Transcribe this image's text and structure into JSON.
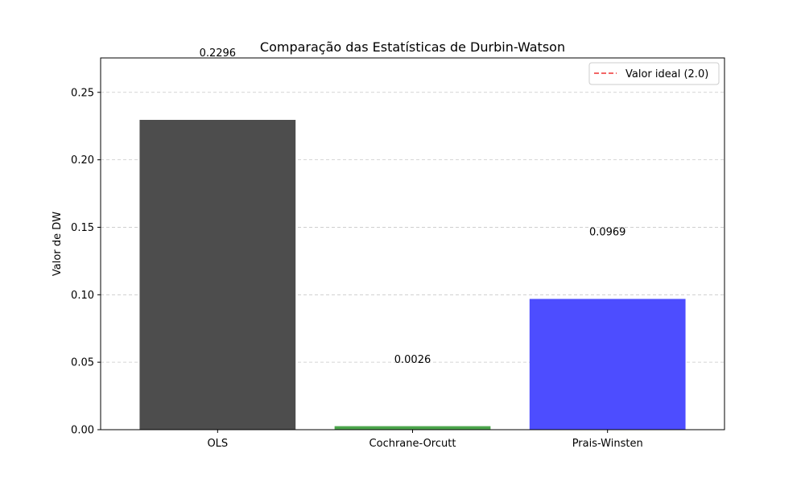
{
  "chart_data": {
    "type": "bar",
    "title": "Comparação das Estatísticas de Durbin-Watson",
    "xlabel": "",
    "ylabel": "Valor de DW",
    "categories": [
      "OLS",
      "Cochrane-Orcutt",
      "Prais-Winsten"
    ],
    "values": [
      0.2296,
      0.0026,
      0.0969
    ],
    "value_labels": [
      "0.2296",
      "0.0026",
      "0.0969"
    ],
    "value_label_offset": 0.05,
    "bar_colors": [
      "#4d4d4d",
      "#4ca64c",
      "#4d4dff"
    ],
    "ylim": [
      0,
      0.2755
    ],
    "yticks": [
      0.0,
      0.05,
      0.1,
      0.15,
      0.2,
      0.25
    ],
    "ytick_labels": [
      "0.00",
      "0.05",
      "0.10",
      "0.15",
      "0.20",
      "0.25"
    ],
    "grid": {
      "axis": "y",
      "style": "dashed",
      "color": "#c8c8c8"
    },
    "reference_line": {
      "label": "Valor ideal (2.0)",
      "value": 2.0,
      "color": "#ee3333",
      "style": "dashed"
    },
    "legend": {
      "position": "top-right",
      "entries": [
        "Valor ideal (2.0)"
      ]
    }
  }
}
